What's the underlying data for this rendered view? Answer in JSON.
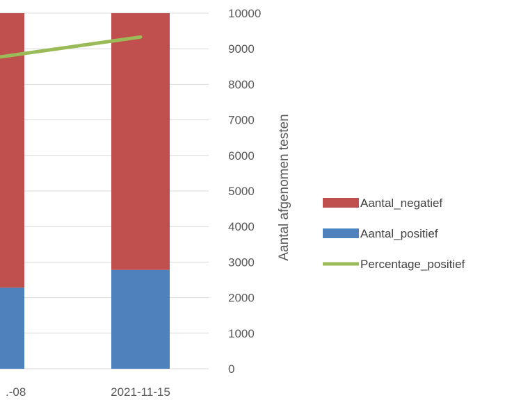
{
  "chart_data": {
    "type": "bar",
    "stacked": true,
    "categories": [
      ".-08",
      "2021-11-15"
    ],
    "series": [
      {
        "name": "Aantal_positief",
        "type": "bar",
        "color": "#4F81BD",
        "values": [
          2280,
          2780
        ]
      },
      {
        "name": "Aantal_negatief",
        "type": "bar",
        "color": "#C0504D",
        "values": [
          7720,
          7220
        ]
      },
      {
        "name": "Percentage_positief",
        "type": "line",
        "color": "#9BBB59",
        "values": [
          8750,
          9330
        ]
      }
    ],
    "ylabel": "Aantal afgenomen testen",
    "ylim": [
      0,
      10000
    ],
    "yticks": [
      0,
      1000,
      2000,
      3000,
      4000,
      5000,
      6000,
      7000,
      8000,
      9000,
      10000
    ],
    "y_axis_side": "right",
    "grid": true,
    "legend": [
      "Aantal_negatief",
      "Aantal_positief",
      "Percentage_positief"
    ],
    "legend_placement": "right"
  }
}
